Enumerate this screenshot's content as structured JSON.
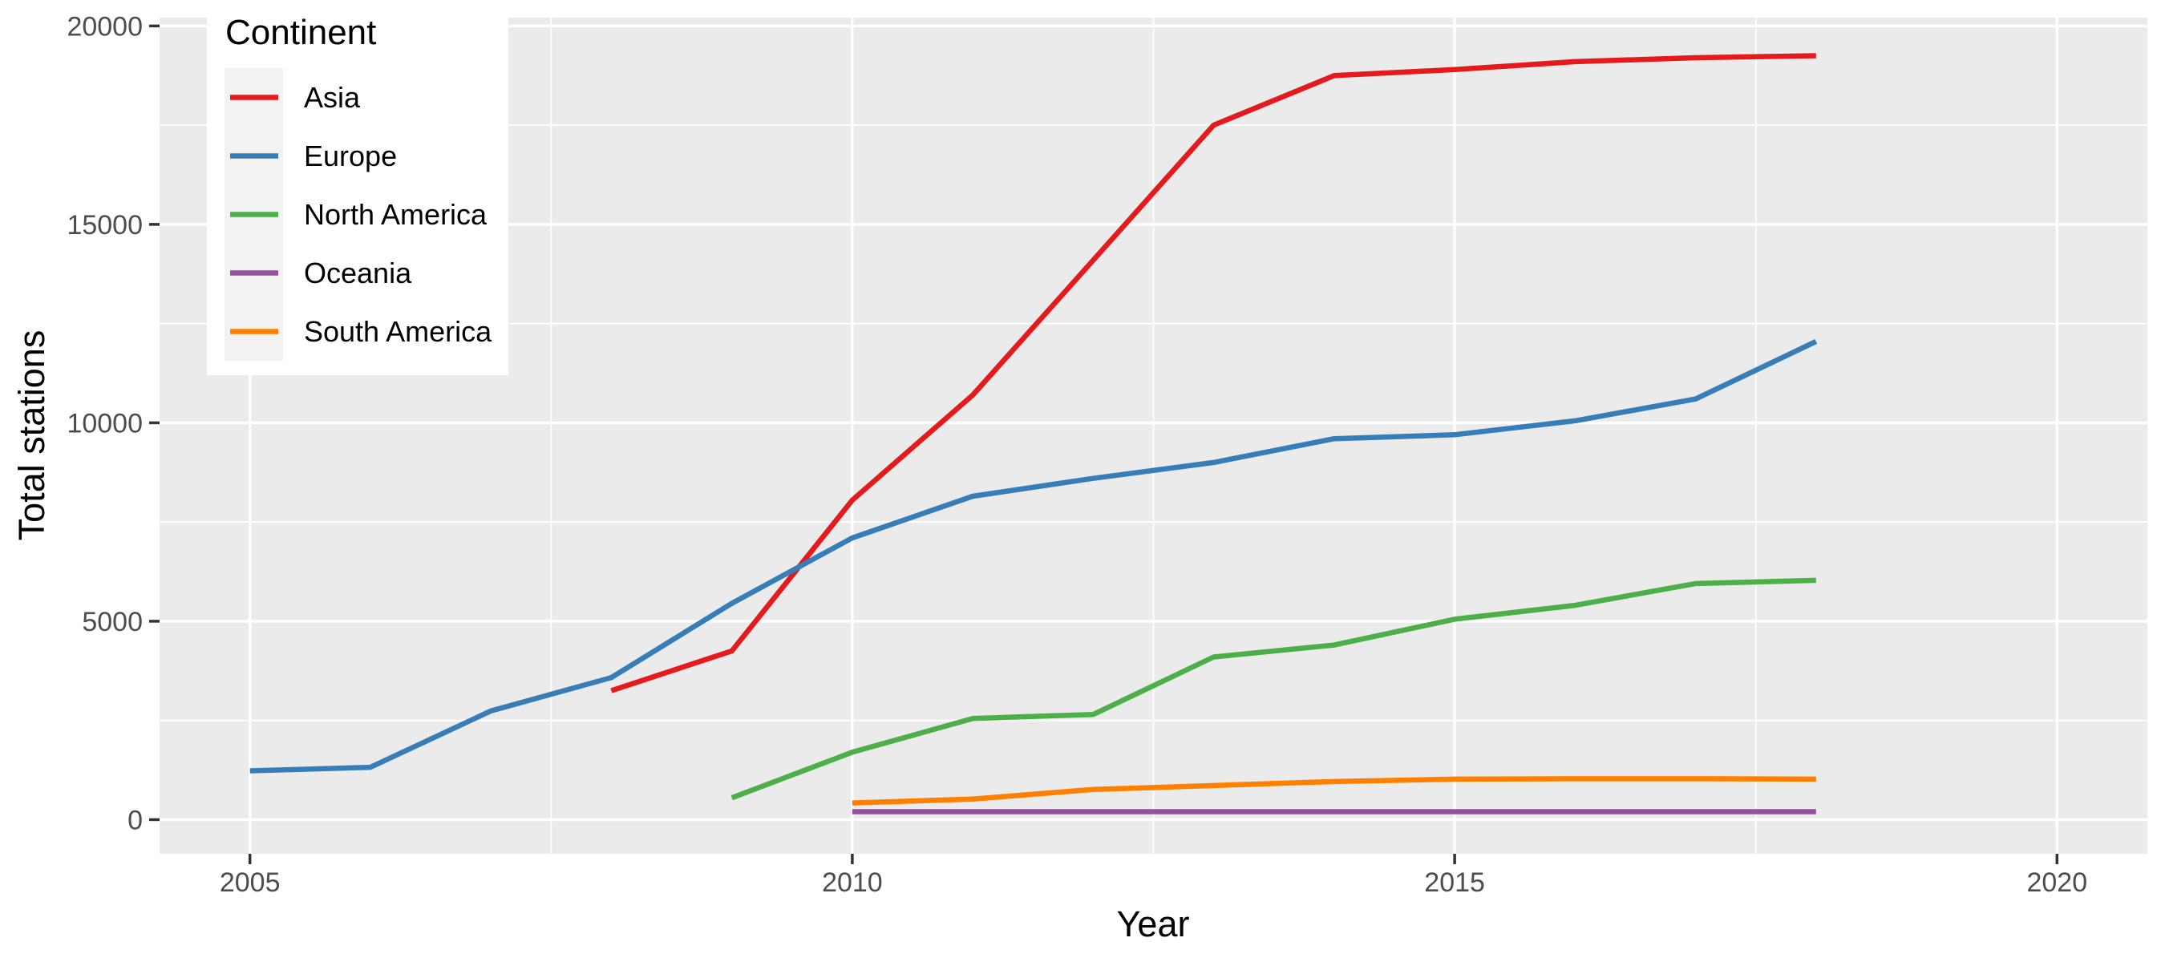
{
  "chart_data": {
    "type": "line",
    "title": "",
    "xlabel": "Year",
    "ylabel": "Total stations",
    "legend_title": "Continent",
    "legend_position": "top-left-inside",
    "grid": true,
    "xlim": [
      2004.25,
      2020.75
    ],
    "ylim": [
      -860,
      20210
    ],
    "x_major_ticks": [
      2005,
      2010,
      2015,
      2020
    ],
    "x_tick_labels": [
      "2005",
      "2010",
      "2015",
      "2020"
    ],
    "x_minor_ticks": [
      2007.5,
      2012.5,
      2017.5
    ],
    "y_major_ticks": [
      0,
      5000,
      10000,
      15000,
      20000
    ],
    "y_tick_labels": [
      "0",
      "5000",
      "10000",
      "15000",
      "20000"
    ],
    "y_minor_ticks": [
      2500,
      7500,
      12500,
      17500
    ],
    "series": [
      {
        "name": "Asia",
        "color": "#E41A1C",
        "x": [
          2008,
          2009,
          2010,
          2011,
          2012,
          2013,
          2014,
          2015,
          2016,
          2017,
          2018
        ],
        "y": [
          3250,
          4250,
          8050,
          10700,
          14100,
          17500,
          18750,
          18900,
          19100,
          19200,
          19250
        ]
      },
      {
        "name": "Europe",
        "color": "#377EB8",
        "x": [
          2005,
          2006,
          2007,
          2008,
          2009,
          2010,
          2011,
          2012,
          2013,
          2014,
          2015,
          2016,
          2017,
          2018
        ],
        "y": [
          1230,
          1320,
          2740,
          3580,
          5450,
          7100,
          8150,
          8600,
          9000,
          9600,
          9700,
          10050,
          10600,
          12050
        ]
      },
      {
        "name": "North America",
        "color": "#4DAF4A",
        "x": [
          2009,
          2010,
          2011,
          2012,
          2013,
          2014,
          2015,
          2016,
          2017,
          2018
        ],
        "y": [
          550,
          1700,
          2550,
          2650,
          4100,
          4400,
          5050,
          5400,
          5950,
          6030
        ]
      },
      {
        "name": "Oceania",
        "color": "#984EA3",
        "x": [
          2010,
          2011,
          2012,
          2013,
          2014,
          2015,
          2016,
          2017,
          2018
        ],
        "y": [
          200,
          200,
          200,
          200,
          200,
          200,
          200,
          200,
          200
        ]
      },
      {
        "name": "South America",
        "color": "#FF7F00",
        "x": [
          2010,
          2011,
          2012,
          2013,
          2014,
          2015,
          2016,
          2017,
          2018
        ],
        "y": [
          420,
          520,
          760,
          860,
          960,
          1020,
          1030,
          1030,
          1020
        ]
      }
    ]
  },
  "style": {
    "page_bg": "#FFFFFF",
    "panel_bg": "#EBEBEB",
    "grid_color": "#FFFFFF",
    "tick_mark_color": "#333333",
    "tick_label_color": "#4D4D4D",
    "axis_title_color": "#000000",
    "legend_bg": "#FFFFFF",
    "legend_key_bg": "#F2F2F2"
  }
}
